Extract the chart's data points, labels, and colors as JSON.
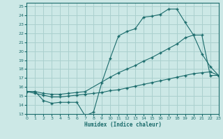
{
  "xlabel": "Humidex (Indice chaleur)",
  "bg_color": "#cce8e6",
  "grid_color": "#aad0ce",
  "line_color": "#1a6b6b",
  "xlim": [
    0,
    23
  ],
  "ylim": [
    13,
    25.4
  ],
  "xticks": [
    0,
    1,
    2,
    3,
    4,
    5,
    6,
    7,
    8,
    9,
    10,
    11,
    12,
    13,
    14,
    15,
    16,
    17,
    18,
    19,
    20,
    21,
    22,
    23
  ],
  "yticks": [
    13,
    14,
    15,
    16,
    17,
    18,
    19,
    20,
    21,
    22,
    23,
    24,
    25
  ],
  "line1_x": [
    0,
    1,
    2,
    3,
    4,
    5,
    6,
    7,
    8,
    9,
    10,
    11,
    12,
    13,
    14,
    15,
    16,
    17,
    18,
    19,
    20,
    21,
    22,
    23
  ],
  "line1_y": [
    15.5,
    15.5,
    14.5,
    14.2,
    14.3,
    14.3,
    14.3,
    12.8,
    13.2,
    16.5,
    19.2,
    21.7,
    22.2,
    22.5,
    23.8,
    23.9,
    24.1,
    24.7,
    24.7,
    23.2,
    21.8,
    19.7,
    18.3,
    17.3
  ],
  "line2_x": [
    0,
    1,
    2,
    3,
    4,
    5,
    6,
    7,
    10,
    11,
    12,
    13,
    14,
    15,
    16,
    17,
    18,
    19,
    20,
    21,
    22,
    23
  ],
  "line2_y": [
    15.5,
    15.5,
    15.3,
    15.2,
    15.2,
    15.3,
    15.4,
    15.5,
    17.1,
    17.6,
    18.0,
    18.4,
    18.9,
    19.3,
    19.8,
    20.3,
    20.8,
    21.5,
    21.8,
    21.8,
    17.3,
    17.3
  ],
  "line3_x": [
    0,
    1,
    2,
    3,
    4,
    5,
    6,
    7,
    8,
    9,
    10,
    11,
    12,
    13,
    14,
    15,
    16,
    17,
    18,
    19,
    20,
    21,
    22,
    23
  ],
  "line3_y": [
    15.5,
    15.3,
    15.1,
    14.9,
    14.9,
    15.0,
    15.1,
    15.2,
    15.3,
    15.4,
    15.6,
    15.7,
    15.9,
    16.1,
    16.3,
    16.5,
    16.7,
    16.9,
    17.1,
    17.3,
    17.5,
    17.6,
    17.7,
    17.3
  ]
}
